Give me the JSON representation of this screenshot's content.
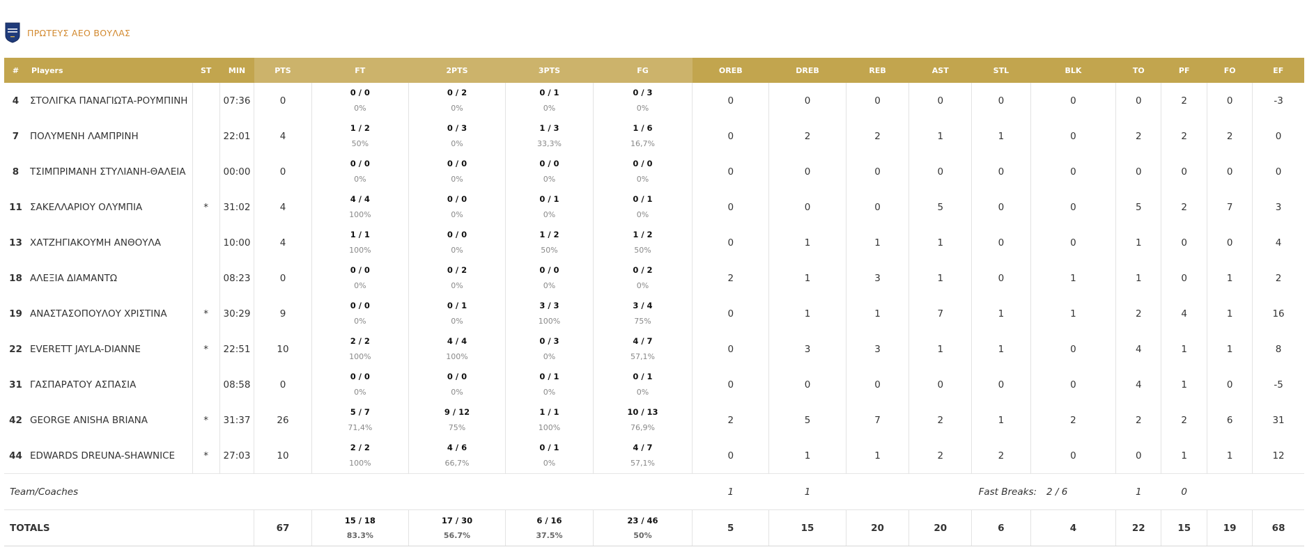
{
  "team": {
    "name": "ΠΡΩΤΕΥΣ ΑΕΟ ΒΟΥΛΑΣ"
  },
  "headers": [
    "#",
    "Players",
    "ST",
    "MIN",
    "PTS",
    "FT",
    "2PTS",
    "3PTS",
    "FG",
    "OREB",
    "DREB",
    "REB",
    "AST",
    "STL",
    "BLK",
    "TO",
    "PF",
    "FO",
    "EF"
  ],
  "players": [
    {
      "num": "4",
      "name": "ΣΤΟΛΙΓΚΑ ΠΑΝΑΓΙΩΤΑ-ΡΟΥΜΠΙΝΗ",
      "st": "",
      "min": "07:36",
      "pts": "0",
      "ft": "0 / 0",
      "ft_pct": "0%",
      "p2": "0 / 2",
      "p2_pct": "0%",
      "p3": "0 / 1",
      "p3_pct": "0%",
      "fg": "0 / 3",
      "fg_pct": "0%",
      "oreb": "0",
      "dreb": "0",
      "reb": "0",
      "ast": "0",
      "stl": "0",
      "blk": "0",
      "to": "0",
      "pf": "2",
      "fo": "0",
      "ef": "-3"
    },
    {
      "num": "7",
      "name": "ΠΟΛΥΜΕΝΗ ΛΑΜΠΡΙΝΗ",
      "st": "",
      "min": "22:01",
      "pts": "4",
      "ft": "1 / 2",
      "ft_pct": "50%",
      "p2": "0 / 3",
      "p2_pct": "0%",
      "p3": "1 / 3",
      "p3_pct": "33,3%",
      "fg": "1 / 6",
      "fg_pct": "16,7%",
      "oreb": "0",
      "dreb": "2",
      "reb": "2",
      "ast": "1",
      "stl": "1",
      "blk": "0",
      "to": "2",
      "pf": "2",
      "fo": "2",
      "ef": "0"
    },
    {
      "num": "8",
      "name": "ΤΣΙΜΠΡΙΜΑΝΗ ΣΤΥΛΙΑΝΗ-ΘΑΛΕΙΑ",
      "st": "",
      "min": "00:00",
      "pts": "0",
      "ft": "0 / 0",
      "ft_pct": "0%",
      "p2": "0 / 0",
      "p2_pct": "0%",
      "p3": "0 / 0",
      "p3_pct": "0%",
      "fg": "0 / 0",
      "fg_pct": "0%",
      "oreb": "0",
      "dreb": "0",
      "reb": "0",
      "ast": "0",
      "stl": "0",
      "blk": "0",
      "to": "0",
      "pf": "0",
      "fo": "0",
      "ef": "0"
    },
    {
      "num": "11",
      "name": "ΣΑΚΕΛΛΑΡΙΟΥ ΟΛΥΜΠΙΑ",
      "st": "*",
      "min": "31:02",
      "pts": "4",
      "ft": "4 / 4",
      "ft_pct": "100%",
      "p2": "0 / 0",
      "p2_pct": "0%",
      "p3": "0 / 1",
      "p3_pct": "0%",
      "fg": "0 / 1",
      "fg_pct": "0%",
      "oreb": "0",
      "dreb": "0",
      "reb": "0",
      "ast": "5",
      "stl": "0",
      "blk": "0",
      "to": "5",
      "pf": "2",
      "fo": "7",
      "ef": "3"
    },
    {
      "num": "13",
      "name": "ΧΑΤΖΗΓΙΑΚΟΥΜΗ ΑΝΘΟΥΛΑ",
      "st": "",
      "min": "10:00",
      "pts": "4",
      "ft": "1 / 1",
      "ft_pct": "100%",
      "p2": "0 / 0",
      "p2_pct": "0%",
      "p3": "1 / 2",
      "p3_pct": "50%",
      "fg": "1 / 2",
      "fg_pct": "50%",
      "oreb": "0",
      "dreb": "1",
      "reb": "1",
      "ast": "1",
      "stl": "0",
      "blk": "0",
      "to": "1",
      "pf": "0",
      "fo": "0",
      "ef": "4"
    },
    {
      "num": "18",
      "name": "ΑΛΕΞΙΑ ΔΙΑΜΑΝΤΩ",
      "st": "",
      "min": "08:23",
      "pts": "0",
      "ft": "0 / 0",
      "ft_pct": "0%",
      "p2": "0 / 2",
      "p2_pct": "0%",
      "p3": "0 / 0",
      "p3_pct": "0%",
      "fg": "0 / 2",
      "fg_pct": "0%",
      "oreb": "2",
      "dreb": "1",
      "reb": "3",
      "ast": "1",
      "stl": "0",
      "blk": "1",
      "to": "1",
      "pf": "0",
      "fo": "1",
      "ef": "2"
    },
    {
      "num": "19",
      "name": "ΑΝΑΣΤΑΣΟΠΟΥΛΟΥ ΧΡΙΣΤΙΝΑ",
      "st": "*",
      "min": "30:29",
      "pts": "9",
      "ft": "0 / 0",
      "ft_pct": "0%",
      "p2": "0 / 1",
      "p2_pct": "0%",
      "p3": "3 / 3",
      "p3_pct": "100%",
      "fg": "3 / 4",
      "fg_pct": "75%",
      "oreb": "0",
      "dreb": "1",
      "reb": "1",
      "ast": "7",
      "stl": "1",
      "blk": "1",
      "to": "2",
      "pf": "4",
      "fo": "1",
      "ef": "16"
    },
    {
      "num": "22",
      "name": "EVERETT JAYLA-DIANNE",
      "st": "*",
      "min": "22:51",
      "pts": "10",
      "ft": "2 / 2",
      "ft_pct": "100%",
      "p2": "4 / 4",
      "p2_pct": "100%",
      "p3": "0 / 3",
      "p3_pct": "0%",
      "fg": "4 / 7",
      "fg_pct": "57,1%",
      "oreb": "0",
      "dreb": "3",
      "reb": "3",
      "ast": "1",
      "stl": "1",
      "blk": "0",
      "to": "4",
      "pf": "1",
      "fo": "1",
      "ef": "8"
    },
    {
      "num": "31",
      "name": "ΓΑΣΠΑΡΑΤΟΥ ΑΣΠΑΣΙΑ",
      "st": "",
      "min": "08:58",
      "pts": "0",
      "ft": "0 / 0",
      "ft_pct": "0%",
      "p2": "0 / 0",
      "p2_pct": "0%",
      "p3": "0 / 1",
      "p3_pct": "0%",
      "fg": "0 / 1",
      "fg_pct": "0%",
      "oreb": "0",
      "dreb": "0",
      "reb": "0",
      "ast": "0",
      "stl": "0",
      "blk": "0",
      "to": "4",
      "pf": "1",
      "fo": "0",
      "ef": "-5"
    },
    {
      "num": "42",
      "name": "GEORGE ANISHA BRIANA",
      "st": "*",
      "min": "31:37",
      "pts": "26",
      "ft": "5 / 7",
      "ft_pct": "71,4%",
      "p2": "9 / 12",
      "p2_pct": "75%",
      "p3": "1 / 1",
      "p3_pct": "100%",
      "fg": "10 / 13",
      "fg_pct": "76,9%",
      "oreb": "2",
      "dreb": "5",
      "reb": "7",
      "ast": "2",
      "stl": "1",
      "blk": "2",
      "to": "2",
      "pf": "2",
      "fo": "6",
      "ef": "31"
    },
    {
      "num": "44",
      "name": "EDWARDS DREUNA-SHAWNICE",
      "st": "*",
      "min": "27:03",
      "pts": "10",
      "ft": "2 / 2",
      "ft_pct": "100%",
      "p2": "4 / 6",
      "p2_pct": "66,7%",
      "p3": "0 / 1",
      "p3_pct": "0%",
      "fg": "4 / 7",
      "fg_pct": "57,1%",
      "oreb": "0",
      "dreb": "1",
      "reb": "1",
      "ast": "2",
      "stl": "2",
      "blk": "0",
      "to": "0",
      "pf": "1",
      "fo": "1",
      "ef": "12"
    }
  ],
  "team_coaches": {
    "label": "Team/Coaches",
    "oreb": "1",
    "dreb": "1",
    "fast_breaks_label": "Fast Breaks:",
    "fast_breaks_value": "2 / 6",
    "to": "1",
    "pf": "0"
  },
  "totals": {
    "label": "TOTALS",
    "pts": "67",
    "ft": "15 / 18",
    "ft_pct": "83.3%",
    "p2": "17 / 30",
    "p2_pct": "56.7%",
    "p3": "6 / 16",
    "p3_pct": "37.5%",
    "fg": "23 / 46",
    "fg_pct": "50%",
    "oreb": "5",
    "dreb": "15",
    "reb": "20",
    "ast": "20",
    "stl": "6",
    "blk": "4",
    "to": "22",
    "pf": "15",
    "fo": "19",
    "ef": "68"
  },
  "colors": {
    "header_gold": "#c2a54e",
    "header_light": "#ccb36b",
    "team_name": "#d2892f",
    "crest": "#1f3b7a"
  }
}
